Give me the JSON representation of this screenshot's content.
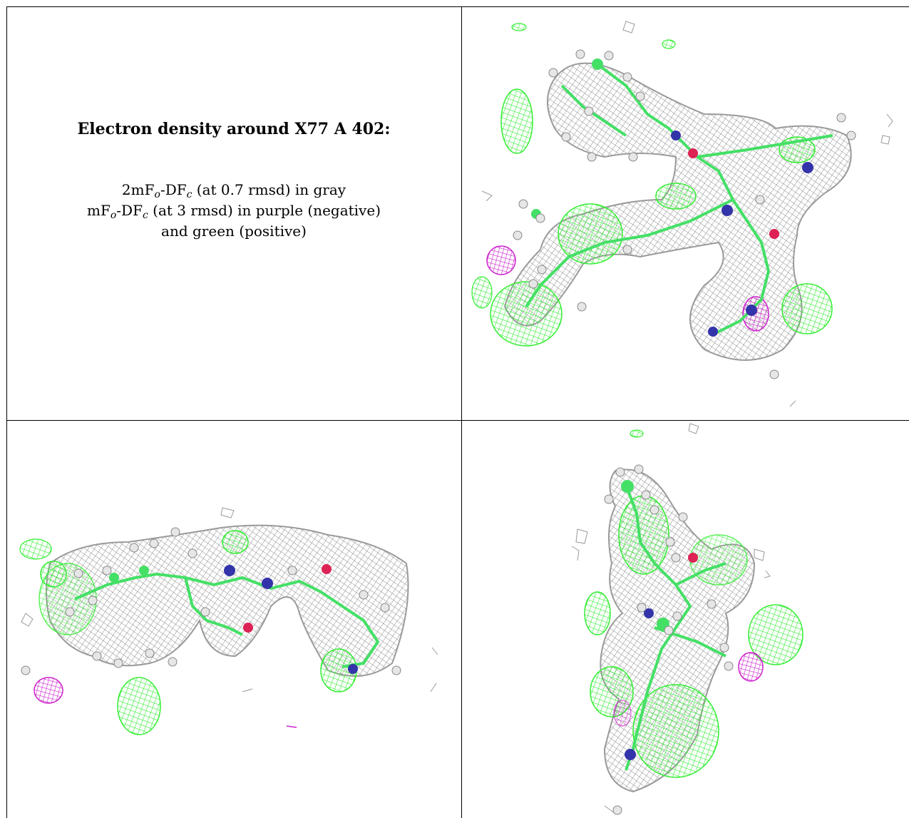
{
  "caption": {
    "title": "Electron density around X77 A 402:",
    "line1_prefix": "2mF",
    "line1_sub_o": "o",
    "line1_mid": "-DF",
    "line1_sub_c": "c",
    "line1_suffix": " (at 0.7 rmsd) in gray",
    "line2_prefix": "mF",
    "line2_sub_o": "o",
    "line2_mid": "-DF",
    "line2_sub_c": "c",
    "line2_suffix": " (at 3 rmsd) in purple (negative)",
    "line3": "and green (positive)"
  },
  "colors": {
    "gray_mesh": "#8c8c8c",
    "green_mesh": "#33ee33",
    "purple_mesh": "#cc22cc",
    "carbon": "#44e066",
    "nitrogen": "#3333aa",
    "oxygen": "#dd2255",
    "hydrogen": "#e6e6e6"
  },
  "panels": [
    {
      "id": "view-1",
      "icon": "density-map-view"
    },
    {
      "id": "view-2",
      "icon": "density-map-view"
    },
    {
      "id": "view-3",
      "icon": "density-map-view"
    }
  ]
}
